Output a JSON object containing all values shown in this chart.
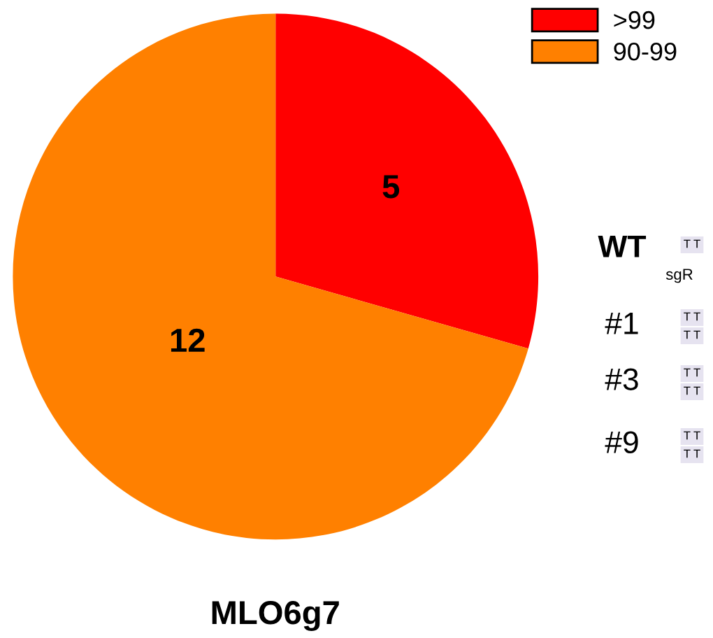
{
  "chart_data": {
    "type": "pie",
    "title": "MLO6g7",
    "categories": [
      ">99",
      "90-99"
    ],
    "values": [
      5,
      12
    ],
    "colors": [
      "#ff0000",
      "#ff8000"
    ],
    "data_labels": true,
    "legend": "top right",
    "annotations": [
      "WT",
      "sgR",
      "#1",
      "#3",
      "#9",
      "T T",
      "T T",
      "T T",
      "T T",
      "T T",
      "T T",
      "T T"
    ]
  }
}
